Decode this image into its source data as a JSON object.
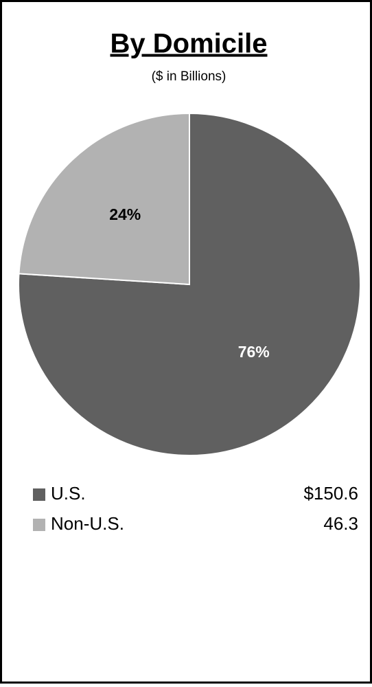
{
  "chart_data": {
    "type": "pie",
    "title": "By Domicile",
    "subtitle": "($ in Billions)",
    "categories": [
      "U.S.",
      "Non-U.S."
    ],
    "values": [
      76,
      24
    ],
    "value_labels": [
      "76%",
      "24%"
    ],
    "colors": [
      "#606060",
      "#b2b2b2"
    ],
    "amounts": [
      150.6,
      46.3
    ],
    "amount_labels": [
      "$150.6",
      "46.3"
    ]
  }
}
